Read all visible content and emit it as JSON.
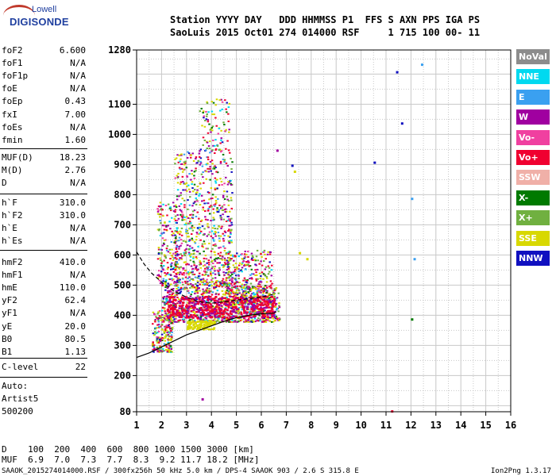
{
  "logo": {
    "top": "Lowell",
    "bottom": "DIGISONDE"
  },
  "header": {
    "row1": "Station YYYY DAY   DDD HHMMSS P1  FFS S AXN PPS IGA PS",
    "row2": "SaoLuis 2015 Oct01 274 014000 RSF     1 715 100 00- 11"
  },
  "params": {
    "group1": [
      {
        "label": "foF2",
        "value": "6.600"
      },
      {
        "label": "foF1",
        "value": "N/A"
      },
      {
        "label": "foF1p",
        "value": "N/A"
      },
      {
        "label": "foE",
        "value": "N/A"
      },
      {
        "label": "foEp",
        "value": "0.43"
      },
      {
        "label": "fxI",
        "value": "7.00"
      },
      {
        "label": "foEs",
        "value": "N/A"
      },
      {
        "label": "fmin",
        "value": "1.60"
      }
    ],
    "group2": [
      {
        "label": "MUF(D)",
        "value": "18.23"
      },
      {
        "label": "M(D)",
        "value": "2.76"
      },
      {
        "label": "D",
        "value": "N/A"
      }
    ],
    "group3": [
      {
        "label": "h`F",
        "value": "310.0"
      },
      {
        "label": "h`F2",
        "value": "310.0"
      },
      {
        "label": "h`E",
        "value": "N/A"
      },
      {
        "label": "h`Es",
        "value": "N/A"
      }
    ],
    "group4": [
      {
        "label": "hmF2",
        "value": "410.0"
      },
      {
        "label": "hmF1",
        "value": "N/A"
      },
      {
        "label": "hmE",
        "value": "110.0"
      },
      {
        "label": "yF2",
        "value": "62.4"
      },
      {
        "label": "yF1",
        "value": "N/A"
      },
      {
        "label": "yE",
        "value": "20.0"
      },
      {
        "label": "B0",
        "value": "80.5"
      },
      {
        "label": "B1",
        "value": "1.13"
      }
    ],
    "group5": [
      {
        "label": "C-level",
        "value": "22"
      }
    ],
    "group6": [
      {
        "label": "Auto:",
        "value": ""
      },
      {
        "label": "Artist5",
        "value": ""
      },
      {
        "label": "500200",
        "value": ""
      }
    ]
  },
  "legend": [
    {
      "label": "NoVal",
      "color": "#8c8c8c"
    },
    {
      "label": "NNE",
      "color": "#00d9f0"
    },
    {
      "label": "E",
      "color": "#3aa0f0"
    },
    {
      "label": "W",
      "color": "#a000a0"
    },
    {
      "label": "Vo-",
      "color": "#f040a0"
    },
    {
      "label": "Vo+",
      "color": "#f00030"
    },
    {
      "label": "SSW",
      "color": "#f0b0a8"
    },
    {
      "label": "X-",
      "color": "#007a00"
    },
    {
      "label": "X+",
      "color": "#70b040"
    },
    {
      "label": "SSE",
      "color": "#d8d800"
    },
    {
      "label": "NNW",
      "color": "#1010c0"
    }
  ],
  "footer": {
    "line1": "D    100  200  400  600  800 1000 1500 3000 [km]",
    "line2": "MUF  6.9  7.0  7.3  7.7  8.3  9.2 11.7 18.2 [MHz]",
    "line3": "SAAOK_2015274014000.RSF / 300fx256h 50 kHz 5.0 km / DPS-4 SAAOK 903 / 2.6 S 315.8 E",
    "version": "Ion2Png 1.3.17"
  },
  "chart_data": {
    "type": "scatter",
    "xlim": [
      1,
      16
    ],
    "ylim": [
      80,
      1280
    ],
    "x_ticks": [
      "1",
      "2",
      "3",
      "4",
      "5",
      "6",
      "7",
      "8",
      "9",
      "10",
      "11",
      "12",
      "13",
      "14",
      "15",
      "16"
    ],
    "y_ticks": [
      {
        "v": 80,
        "label": "80"
      },
      {
        "v": 200,
        "label": "200"
      },
      {
        "v": 300,
        "label": "300"
      },
      {
        "v": 400,
        "label": "400"
      },
      {
        "v": 500,
        "label": "500"
      },
      {
        "v": 600,
        "label": "600"
      },
      {
        "v": 700,
        "label": "700"
      },
      {
        "v": 800,
        "label": "800"
      },
      {
        "v": 900,
        "label": "900"
      },
      {
        "v": 1000,
        "label": "1000"
      },
      {
        "v": 1100,
        "label": "1100"
      },
      {
        "v": 1280,
        "label": "1280"
      }
    ],
    "trace_upper": [
      [
        1.0,
        610
      ],
      [
        1.3,
        570
      ],
      [
        1.6,
        540
      ],
      [
        2.0,
        510
      ],
      [
        2.5,
        480
      ],
      [
        3.0,
        460
      ],
      [
        3.5,
        445
      ],
      [
        4.0,
        440
      ],
      [
        4.5,
        445
      ],
      [
        5.0,
        450
      ],
      [
        5.5,
        455
      ],
      [
        6.0,
        460
      ],
      [
        6.5,
        470
      ]
    ],
    "trace_lower": [
      [
        1.0,
        260
      ],
      [
        1.5,
        275
      ],
      [
        2.0,
        295
      ],
      [
        2.5,
        315
      ],
      [
        3.0,
        335
      ],
      [
        3.5,
        350
      ],
      [
        4.0,
        365
      ],
      [
        4.5,
        380
      ],
      [
        5.0,
        392
      ],
      [
        5.5,
        400
      ],
      [
        6.0,
        405
      ],
      [
        6.5,
        407
      ],
      [
        6.6,
        412
      ]
    ],
    "scatter_points": [
      {
        "x": 11.4,
        "y": 1210,
        "c": "#1010c0"
      },
      {
        "x": 12.4,
        "y": 1235,
        "c": "#3aa0f0"
      },
      {
        "x": 11.6,
        "y": 1040,
        "c": "#1010c0"
      },
      {
        "x": 10.5,
        "y": 910,
        "c": "#1010c0"
      },
      {
        "x": 12.0,
        "y": 790,
        "c": "#3aa0f0"
      },
      {
        "x": 12.1,
        "y": 590,
        "c": "#3aa0f0"
      },
      {
        "x": 12.0,
        "y": 390,
        "c": "#007a00"
      },
      {
        "x": 11.2,
        "y": 85,
        "c": "#f00030"
      },
      {
        "x": 3.6,
        "y": 125,
        "c": "#a000a0"
      },
      {
        "x": 6.6,
        "y": 950,
        "c": "#a000a0"
      },
      {
        "x": 7.3,
        "y": 880,
        "c": "#d8d800"
      },
      {
        "x": 7.5,
        "y": 610,
        "c": "#d8d800"
      },
      {
        "x": 7.8,
        "y": 590,
        "c": "#d8d800"
      },
      {
        "x": 7.2,
        "y": 900,
        "c": "#1010c0"
      }
    ]
  }
}
